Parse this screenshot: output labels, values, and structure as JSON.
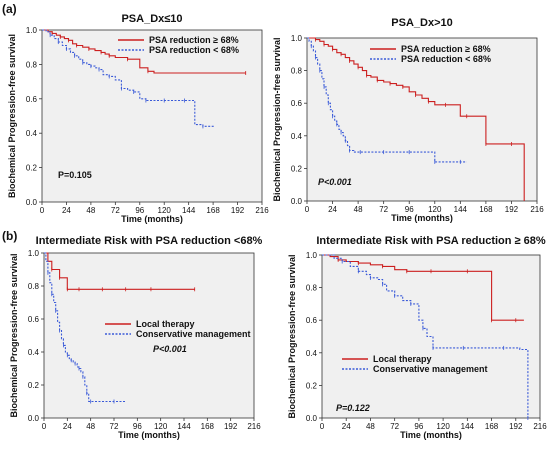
{
  "panel_labels": [
    "(a)",
    "(b)"
  ],
  "chart_data": [
    {
      "type": "line",
      "title": "PSA_Dx≤10",
      "xlabel": "Time (months)",
      "ylabel": "Biochemical Progression-free survival",
      "xlim": [
        0,
        216
      ],
      "ylim": [
        0,
        1.0
      ],
      "xticks": [
        "0",
        "24",
        "48",
        "72",
        "96",
        "120",
        "144",
        "168",
        "192",
        "216"
      ],
      "yticks": [
        "0.0",
        "0.2",
        "0.4",
        "0.6",
        "0.8",
        "1.0"
      ],
      "legend_position": "top-right",
      "annotation": "P=0.105",
      "annotation_italic": false,
      "series": [
        {
          "name": "PSA reduction ≥ 68%",
          "color": "#cc1f1f",
          "dash": false,
          "x": [
            0,
            6,
            10,
            14,
            18,
            22,
            26,
            30,
            34,
            40,
            46,
            52,
            58,
            62,
            66,
            72,
            84,
            96,
            104,
            110,
            200
          ],
          "y": [
            1.0,
            0.99,
            0.98,
            0.97,
            0.96,
            0.95,
            0.94,
            0.92,
            0.91,
            0.9,
            0.89,
            0.88,
            0.87,
            0.86,
            0.85,
            0.84,
            0.83,
            0.78,
            0.76,
            0.75,
            0.75
          ]
        },
        {
          "name": "PSA reduction < 68%",
          "color": "#3a5ad8",
          "dash": true,
          "x": [
            0,
            4,
            8,
            12,
            16,
            20,
            24,
            28,
            32,
            36,
            40,
            44,
            48,
            52,
            56,
            60,
            66,
            72,
            78,
            84,
            90,
            96,
            102,
            110,
            120,
            130,
            140,
            150,
            158,
            170
          ],
          "y": [
            1.0,
            0.99,
            0.97,
            0.95,
            0.93,
            0.91,
            0.89,
            0.87,
            0.85,
            0.83,
            0.81,
            0.8,
            0.79,
            0.78,
            0.77,
            0.74,
            0.73,
            0.71,
            0.66,
            0.65,
            0.64,
            0.6,
            0.59,
            0.59,
            0.59,
            0.59,
            0.59,
            0.45,
            0.44,
            0.44
          ]
        }
      ]
    },
    {
      "type": "line",
      "title": "PSA_Dx>10",
      "xlabel": "Time (months)",
      "ylabel": "Biochemical Progression-free survival",
      "xlim": [
        0,
        216
      ],
      "ylim": [
        0,
        1.0
      ],
      "xticks": [
        "0",
        "24",
        "48",
        "72",
        "96",
        "120",
        "144",
        "168",
        "192",
        "216"
      ],
      "yticks": [
        "0.0",
        "0.2",
        "0.4",
        "0.6",
        "0.8",
        "1.0"
      ],
      "legend_position": "top-right",
      "annotation": "P<0.001",
      "annotation_italic": true,
      "series": [
        {
          "name": "PSA reduction ≥ 68%",
          "color": "#cc1f1f",
          "dash": false,
          "x": [
            0,
            4,
            8,
            12,
            16,
            20,
            24,
            28,
            32,
            36,
            40,
            44,
            48,
            52,
            56,
            60,
            66,
            72,
            78,
            84,
            90,
            96,
            102,
            108,
            114,
            120,
            130,
            144,
            150,
            156,
            168,
            180,
            192,
            204
          ],
          "y": [
            1.0,
            1.0,
            0.99,
            0.98,
            0.96,
            0.95,
            0.93,
            0.91,
            0.9,
            0.88,
            0.86,
            0.84,
            0.82,
            0.8,
            0.77,
            0.76,
            0.74,
            0.73,
            0.72,
            0.71,
            0.7,
            0.67,
            0.65,
            0.63,
            0.61,
            0.59,
            0.59,
            0.52,
            0.52,
            0.52,
            0.35,
            0.35,
            0.35,
            0.0
          ]
        },
        {
          "name": "PSA reduction < 68%",
          "color": "#3a5ad8",
          "dash": true,
          "x": [
            0,
            2,
            4,
            6,
            8,
            10,
            12,
            14,
            16,
            18,
            20,
            22,
            24,
            26,
            28,
            30,
            32,
            34,
            36,
            38,
            40,
            44,
            50,
            60,
            72,
            84,
            96,
            108,
            120,
            130,
            144,
            150
          ],
          "y": [
            1.0,
            0.98,
            0.95,
            0.92,
            0.88,
            0.84,
            0.8,
            0.75,
            0.7,
            0.65,
            0.6,
            0.56,
            0.52,
            0.49,
            0.47,
            0.44,
            0.42,
            0.4,
            0.37,
            0.34,
            0.31,
            0.3,
            0.3,
            0.3,
            0.3,
            0.3,
            0.3,
            0.3,
            0.24,
            0.24,
            0.24,
            0.24
          ]
        }
      ]
    },
    {
      "type": "line",
      "title": "Intermediate Risk with PSA reduction <68%",
      "xlabel": "Time (months)",
      "ylabel": "Biochemical Progression-free survival",
      "xlim": [
        0,
        216
      ],
      "ylim": [
        0,
        1.0
      ],
      "xticks": [
        "0",
        "24",
        "48",
        "72",
        "96",
        "120",
        "144",
        "168",
        "192",
        "216"
      ],
      "yticks": [
        "0.0",
        "0.2",
        "0.4",
        "0.6",
        "0.8",
        "1.0"
      ],
      "legend_position": "middle-right",
      "annotation": "P<0.001",
      "annotation_italic": true,
      "series": [
        {
          "name": "Local therapy",
          "color": "#cc1f1f",
          "dash": false,
          "x": [
            0,
            4,
            8,
            12,
            16,
            20,
            24,
            30,
            36,
            48,
            60,
            72,
            84,
            96,
            110,
            130,
            155
          ],
          "y": [
            1.0,
            0.95,
            0.9,
            0.9,
            0.85,
            0.85,
            0.78,
            0.78,
            0.78,
            0.78,
            0.78,
            0.78,
            0.78,
            0.78,
            0.78,
            0.78,
            0.78
          ]
        },
        {
          "name": "Conservative management",
          "color": "#3a5ad8",
          "dash": true,
          "x": [
            0,
            2,
            4,
            6,
            8,
            10,
            12,
            14,
            16,
            18,
            20,
            22,
            24,
            26,
            28,
            30,
            32,
            34,
            36,
            38,
            40,
            42,
            44,
            46,
            48,
            60,
            72,
            84
          ],
          "y": [
            1.0,
            0.95,
            0.88,
            0.82,
            0.75,
            0.7,
            0.65,
            0.58,
            0.53,
            0.48,
            0.44,
            0.4,
            0.38,
            0.36,
            0.35,
            0.34,
            0.33,
            0.31,
            0.3,
            0.28,
            0.25,
            0.2,
            0.15,
            0.1,
            0.1,
            0.1,
            0.1,
            0.1
          ]
        }
      ]
    },
    {
      "type": "line",
      "title": "Intermediate Risk with PSA reduction ≥ 68%",
      "xlabel": "Time (months)",
      "ylabel": "Biochemical Progression-free survival",
      "xlim": [
        0,
        216
      ],
      "ylim": [
        0,
        1.0
      ],
      "xticks": [
        "0",
        "24",
        "48",
        "72",
        "96",
        "120",
        "144",
        "168",
        "192",
        "216"
      ],
      "yticks": [
        "0.0",
        "0.2",
        "0.4",
        "0.6",
        "0.8",
        "1.0"
      ],
      "legend_position": "bottom-left",
      "annotation": "P=0.122",
      "annotation_italic": true,
      "series": [
        {
          "name": "Local therapy",
          "color": "#cc1f1f",
          "dash": false,
          "x": [
            0,
            8,
            16,
            24,
            36,
            48,
            60,
            72,
            84,
            96,
            108,
            120,
            144,
            160,
            168,
            180,
            192,
            200
          ],
          "y": [
            1.0,
            0.99,
            0.97,
            0.96,
            0.95,
            0.94,
            0.93,
            0.91,
            0.9,
            0.9,
            0.9,
            0.9,
            0.9,
            0.9,
            0.6,
            0.6,
            0.6,
            0.6
          ]
        },
        {
          "name": "Conservative management",
          "color": "#3a5ad8",
          "dash": true,
          "x": [
            0,
            12,
            20,
            28,
            36,
            44,
            48,
            56,
            60,
            64,
            72,
            80,
            88,
            96,
            100,
            104,
            110,
            120,
            140,
            160,
            180,
            196,
            204
          ],
          "y": [
            1.0,
            0.98,
            0.96,
            0.93,
            0.9,
            0.88,
            0.86,
            0.85,
            0.82,
            0.78,
            0.75,
            0.72,
            0.7,
            0.6,
            0.55,
            0.5,
            0.43,
            0.43,
            0.43,
            0.43,
            0.43,
            0.42,
            0.0
          ]
        }
      ]
    }
  ]
}
